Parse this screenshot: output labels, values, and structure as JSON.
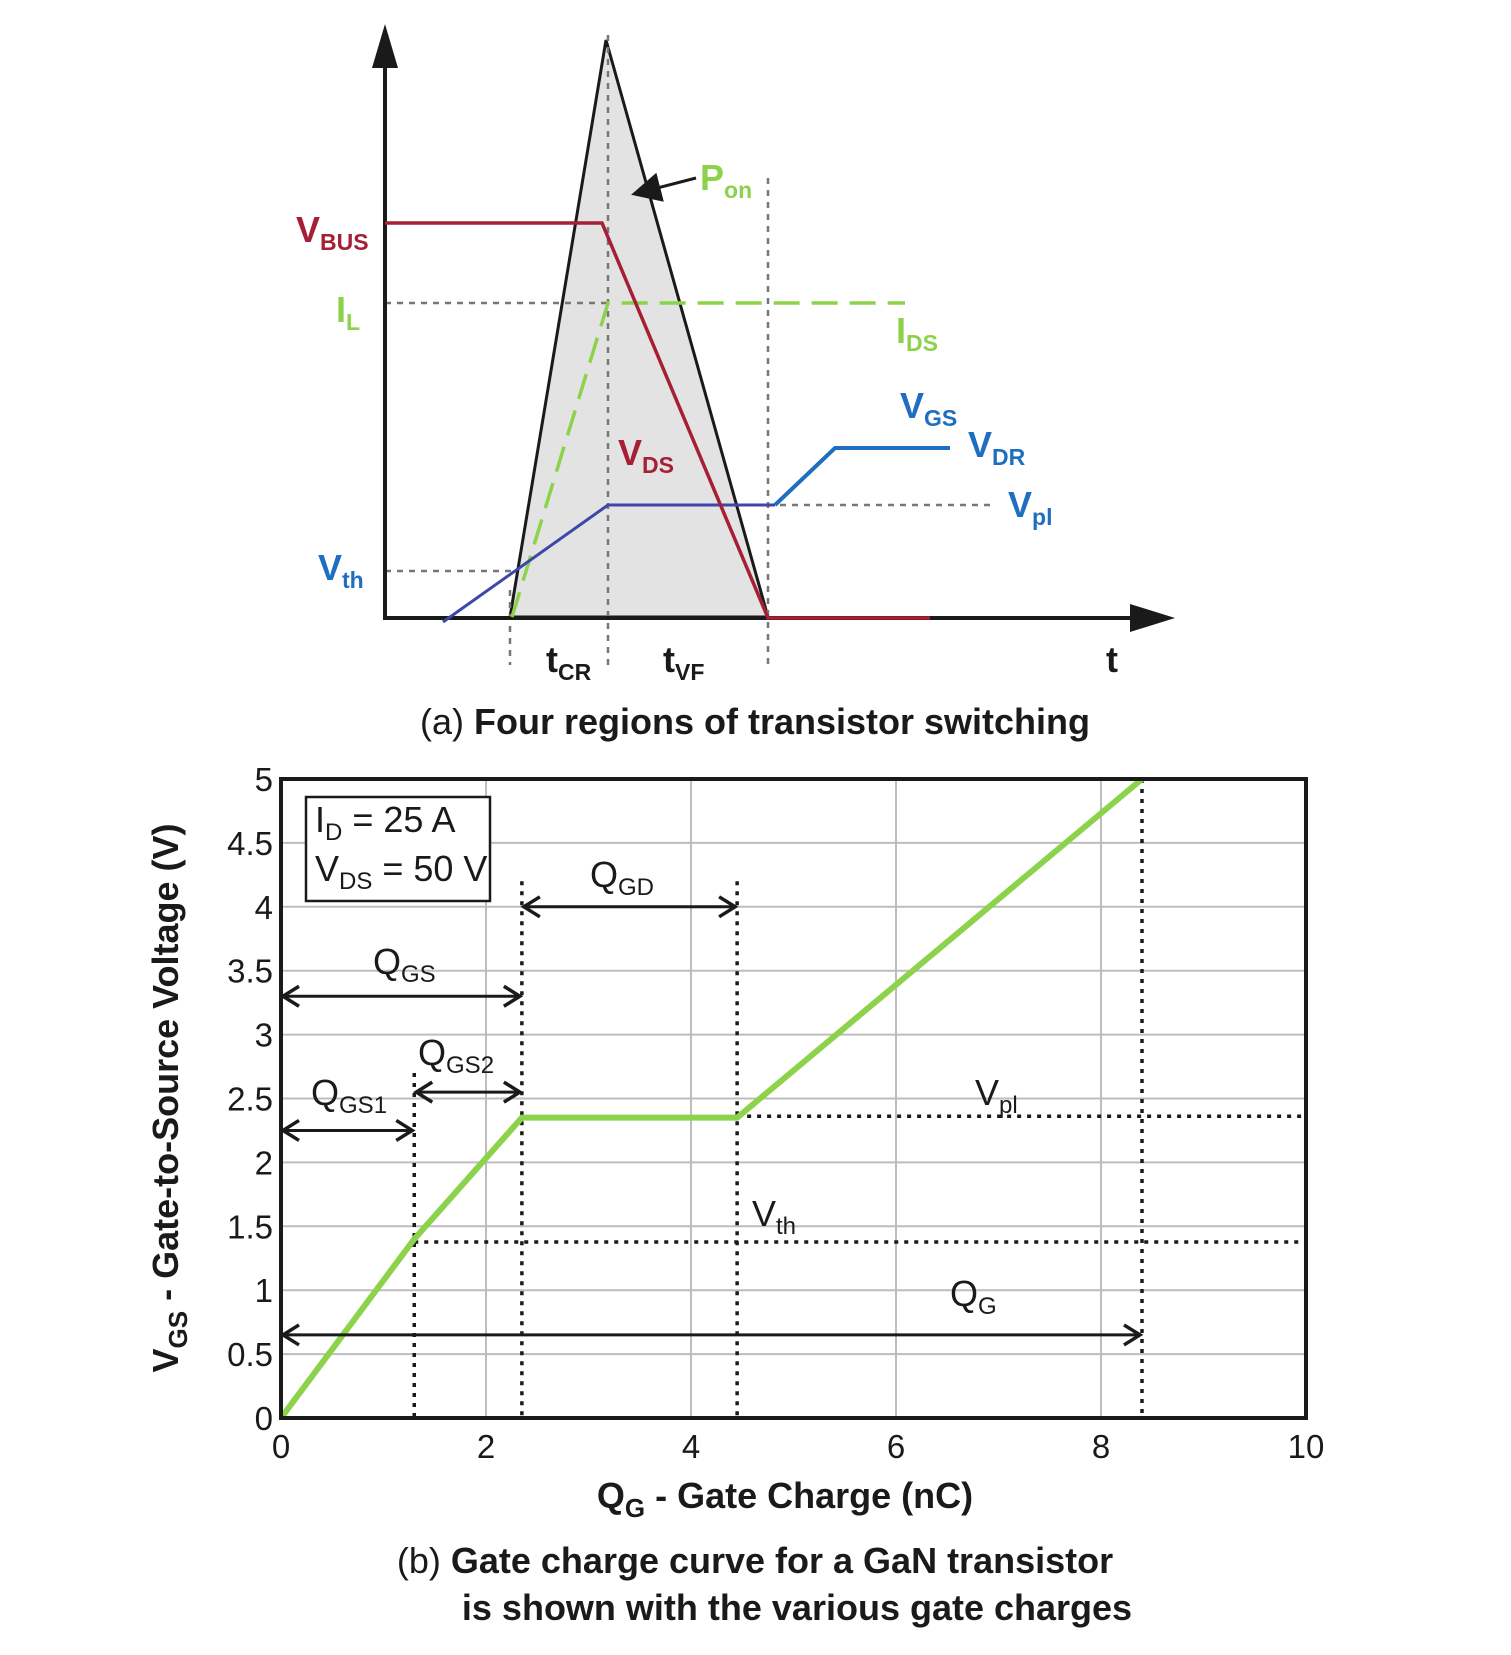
{
  "colors": {
    "green": "#8cd24a",
    "red": "#a51f35",
    "blue": "#1f6fc0",
    "purple": "#3e46a8",
    "black": "#1a1a1a",
    "grid": "#bdbdbd",
    "shade": "#e3e3e3"
  },
  "panel_a": {
    "caption_prefix": "(a) ",
    "caption_bold": "Four regions of transistor switching",
    "labels": {
      "vbus": {
        "main": "V",
        "sub": "BUS"
      },
      "il": {
        "main": "I",
        "sub": "L"
      },
      "pon": {
        "main": "P",
        "sub": "on"
      },
      "ids": {
        "main": "I",
        "sub": "DS"
      },
      "vgs": {
        "main": "V",
        "sub": "GS"
      },
      "vdr": {
        "main": "V",
        "sub": "DR"
      },
      "vds": {
        "main": "V",
        "sub": "DS"
      },
      "vpl": {
        "main": "V",
        "sub": "pl"
      },
      "vth": {
        "main": "V",
        "sub": "th"
      },
      "tcr": {
        "main": "t",
        "sub": "CR"
      },
      "tvf": {
        "main": "t",
        "sub": "VF"
      },
      "t": "t"
    }
  },
  "panel_b": {
    "caption_prefix": "(b) ",
    "caption_bold_line1": "Gate charge curve for a GaN transistor",
    "caption_bold_line2": "is shown with the various gate charges",
    "legend_box": {
      "line1": {
        "main": "I",
        "sub": "D",
        "rest": " = 25 A"
      },
      "line2": {
        "main": "V",
        "sub": "DS",
        "rest": " = 50 V"
      }
    },
    "annotations": {
      "qgd": {
        "main": "Q",
        "sub": "GD"
      },
      "qgs": {
        "main": "Q",
        "sub": "GS"
      },
      "qgs2": {
        "main": "Q",
        "sub": "GS2"
      },
      "qgs1": {
        "main": "Q",
        "sub": "GS1"
      },
      "vpl": {
        "main": "V",
        "sub": "pl"
      },
      "vth": {
        "main": "V",
        "sub": "th"
      },
      "qg": {
        "main": "Q",
        "sub": "G"
      }
    }
  },
  "chart_data": {
    "type": "line",
    "xlabel": {
      "main": "Q",
      "sub": "G",
      "rest": " - Gate Charge (nC)"
    },
    "ylabel": {
      "main": "V",
      "sub": "GS",
      "rest": " - Gate-to-Source Voltage (V)"
    },
    "xlim": [
      0,
      10
    ],
    "ylim": [
      0,
      5
    ],
    "xticks": [
      "0",
      "2",
      "4",
      "6",
      "8",
      "10"
    ],
    "yticks": [
      "0",
      "0.5",
      "1",
      "1.5",
      "2",
      "2.5",
      "3",
      "3.5",
      "4",
      "4.5",
      "5"
    ],
    "grid": true,
    "series": [
      {
        "x": [
          0,
          1.3,
          2.35,
          4.45,
          8.4
        ],
        "y": [
          0,
          1.4,
          2.35,
          2.35,
          5
        ]
      }
    ],
    "reference_lines": {
      "vth": 1.33,
      "vpl": 2.33,
      "qgs1": 1.3,
      "qgs": 2.35,
      "qgd_end": 4.45,
      "qg": 8.4
    }
  }
}
